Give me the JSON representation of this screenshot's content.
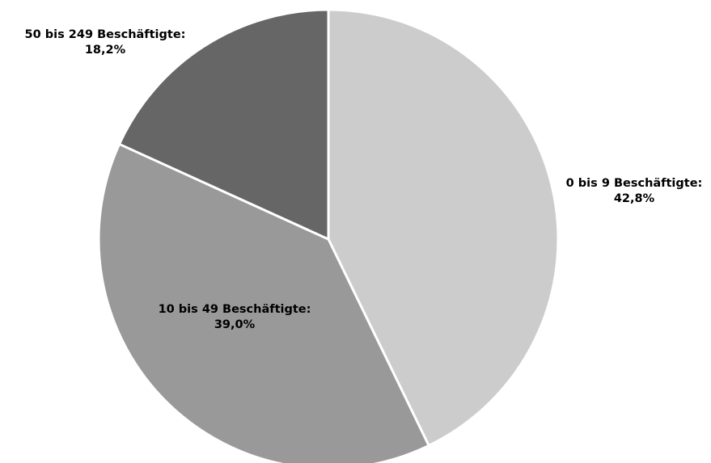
{
  "chart_data": {
    "type": "pie",
    "title": "",
    "slices": [
      {
        "label": "0 bis 9 Beschäftigte:",
        "value": 42.8,
        "value_text": "42,8%",
        "color": "#cccccc"
      },
      {
        "label": "10 bis 49 Beschäftigte:",
        "value": 39.0,
        "value_text": "39,0%",
        "color": "#999999"
      },
      {
        "label": "50 bis 249 Beschäftigte:",
        "value": 18.2,
        "value_text": "18,2%",
        "color": "#666666"
      }
    ],
    "start_angle": "12 o'clock",
    "direction": "clockwise",
    "legend": "none",
    "background": "#ffffff",
    "separator_color": "#ffffff"
  }
}
